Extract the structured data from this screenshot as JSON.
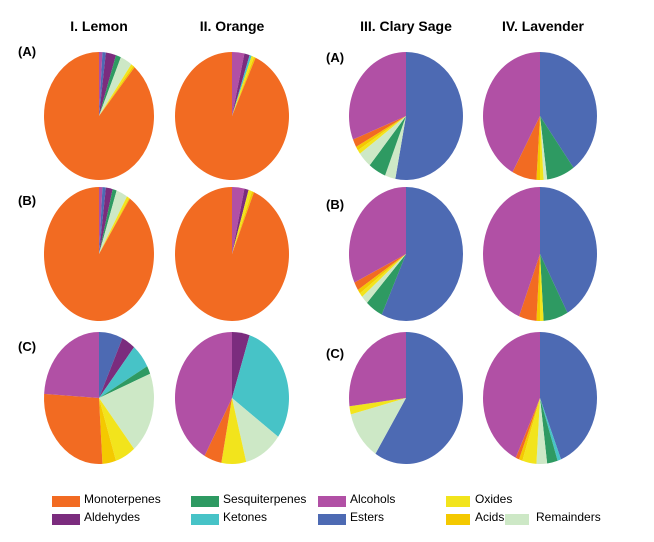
{
  "chart_data": {
    "type": "pie",
    "columns": [
      "I. Lemon",
      "II. Orange",
      "III. Clary Sage",
      "IV. Lavender"
    ],
    "row_labels_left": [
      "(A)",
      "(B)",
      "(C)"
    ],
    "row_labels_right": [
      "(A)",
      "(B)",
      "(C)"
    ],
    "legend_position": "bottom",
    "categories": [
      "Monoterpenes",
      "Aldehydes",
      "Sesquiterpenes",
      "Ketones",
      "Alcohols",
      "Esters",
      "Oxides",
      "Acids",
      "Remainders"
    ],
    "colors": {
      "Monoterpenes": "#f26b22",
      "Aldehydes": "#7b2c7e",
      "Sesquiterpenes": "#2e9a62",
      "Ketones": "#47c3c7",
      "Alcohols": "#b150a5",
      "Esters": "#4d6ab3",
      "Oxides": "#f2e41c",
      "Acids": "#f4c900",
      "Remainders": "#cde8c6"
    },
    "legend": [
      {
        "label": "Monoterpenes",
        "color": "#f26b22"
      },
      {
        "label": "Aldehydes",
        "color": "#7b2c7e"
      },
      {
        "label": "Sesquiterpenes",
        "color": "#2e9a62"
      },
      {
        "label": "Ketones",
        "color": "#47c3c7"
      },
      {
        "label": "Alcohols",
        "color": "#b150a5"
      },
      {
        "label": "Esters",
        "color": "#4d6ab3"
      },
      {
        "label": "Oxides",
        "color": "#f2e41c"
      },
      {
        "label": "Acids",
        "color": "#f4c900"
      },
      {
        "label": "Remainders",
        "color": "#cde8c6"
      }
    ],
    "pies": [
      {
        "column": "I. Lemon",
        "row": "(A)",
        "slices": [
          {
            "category": "Alcohols",
            "value": 1.0
          },
          {
            "category": "Esters",
            "value": 1.0
          },
          {
            "category": "Aldehydes",
            "value": 3.0
          },
          {
            "category": "Sesquiterpenes",
            "value": 1.5
          },
          {
            "category": "Remainders",
            "value": 3.5
          },
          {
            "category": "Oxides",
            "value": 0.7
          },
          {
            "category": "Acids",
            "value": 0.5
          },
          {
            "category": "Monoterpenes",
            "value": 88.8
          }
        ]
      },
      {
        "column": "II. Orange",
        "row": "(A)",
        "slices": [
          {
            "category": "Alcohols",
            "value": 3.5
          },
          {
            "category": "Aldehydes",
            "value": 1.5
          },
          {
            "category": "Ketones",
            "value": 0.6
          },
          {
            "category": "Oxides",
            "value": 0.7
          },
          {
            "category": "Acids",
            "value": 0.5
          },
          {
            "category": "Monoterpenes",
            "value": 93.2
          }
        ]
      },
      {
        "column": "III. Clary Sage",
        "row": "(A)",
        "slices": [
          {
            "category": "Esters",
            "value": 53
          },
          {
            "category": "Remainders",
            "value": 3
          },
          {
            "category": "Sesquiterpenes",
            "value": 5
          },
          {
            "category": "Remainders",
            "value": 4
          },
          {
            "category": "Oxides",
            "value": 1
          },
          {
            "category": "Acids",
            "value": 1
          },
          {
            "category": "Monoterpenes",
            "value": 2
          },
          {
            "category": "Alcohols",
            "value": 31
          }
        ]
      },
      {
        "column": "IV. Lavender",
        "row": "(A)",
        "slices": [
          {
            "category": "Esters",
            "value": 40
          },
          {
            "category": "Sesquiterpenes",
            "value": 8
          },
          {
            "category": "Remainders",
            "value": 1
          },
          {
            "category": "Oxides",
            "value": 1
          },
          {
            "category": "Acids",
            "value": 1
          },
          {
            "category": "Monoterpenes",
            "value": 7
          },
          {
            "category": "Alcohols",
            "value": 42
          }
        ]
      },
      {
        "column": "I. Lemon",
        "row": "(B)",
        "slices": [
          {
            "category": "Alcohols",
            "value": 1.0
          },
          {
            "category": "Esters",
            "value": 1.0
          },
          {
            "category": "Aldehydes",
            "value": 2.0
          },
          {
            "category": "Sesquiterpenes",
            "value": 1.2
          },
          {
            "category": "Remainders",
            "value": 3.3
          },
          {
            "category": "Oxides",
            "value": 0.7
          },
          {
            "category": "Acids",
            "value": 0.3
          },
          {
            "category": "Monoterpenes",
            "value": 90.5
          }
        ]
      },
      {
        "column": "II. Orange",
        "row": "(B)",
        "slices": [
          {
            "category": "Alcohols",
            "value": 3.5
          },
          {
            "category": "Aldehydes",
            "value": 1.2
          },
          {
            "category": "Oxides",
            "value": 1.0
          },
          {
            "category": "Acids",
            "value": 0.6
          },
          {
            "category": "Monoterpenes",
            "value": 93.7
          }
        ]
      },
      {
        "column": "III. Clary Sage",
        "row": "(B)",
        "slices": [
          {
            "category": "Esters",
            "value": 57
          },
          {
            "category": "Sesquiterpenes",
            "value": 5
          },
          {
            "category": "Remainders",
            "value": 2
          },
          {
            "category": "Oxides",
            "value": 1
          },
          {
            "category": "Acids",
            "value": 1
          },
          {
            "category": "Monoterpenes",
            "value": 2
          },
          {
            "category": "Alcohols",
            "value": 32
          }
        ]
      },
      {
        "column": "IV. Lavender",
        "row": "(B)",
        "slices": [
          {
            "category": "Esters",
            "value": 42
          },
          {
            "category": "Sesquiterpenes",
            "value": 7
          },
          {
            "category": "Oxides",
            "value": 1
          },
          {
            "category": "Acids",
            "value": 1
          },
          {
            "category": "Monoterpenes",
            "value": 5
          },
          {
            "category": "Alcohols",
            "value": 44
          }
        ]
      },
      {
        "column": "I. Lemon",
        "row": "(C)",
        "slices": [
          {
            "category": "Esters",
            "value": 7
          },
          {
            "category": "Aldehydes",
            "value": 4
          },
          {
            "category": "Ketones",
            "value": 6
          },
          {
            "category": "Sesquiterpenes",
            "value": 2
          },
          {
            "category": "Remainders",
            "value": 20
          },
          {
            "category": "Oxides",
            "value": 6
          },
          {
            "category": "Acids",
            "value": 4
          },
          {
            "category": "Monoterpenes",
            "value": 27
          },
          {
            "category": "Alcohols",
            "value": 24
          }
        ]
      },
      {
        "column": "II. Orange",
        "row": "(C)",
        "slices": [
          {
            "category": "Aldehydes",
            "value": 5
          },
          {
            "category": "Ketones",
            "value": 30
          },
          {
            "category": "Remainders",
            "value": 11
          },
          {
            "category": "Oxides",
            "value": 7
          },
          {
            "category": "Monoterpenes",
            "value": 5
          },
          {
            "category": "Alcohols",
            "value": 42
          }
        ]
      },
      {
        "column": "III. Clary Sage",
        "row": "(C)",
        "slices": [
          {
            "category": "Esters",
            "value": 59
          },
          {
            "category": "Remainders",
            "value": 12
          },
          {
            "category": "Oxides",
            "value": 2
          },
          {
            "category": "Alcohols",
            "value": 27
          }
        ]
      },
      {
        "column": "IV. Lavender",
        "row": "(C)",
        "slices": [
          {
            "category": "Esters",
            "value": 44
          },
          {
            "category": "Ketones",
            "value": 1
          },
          {
            "category": "Sesquiterpenes",
            "value": 3
          },
          {
            "category": "Remainders",
            "value": 3
          },
          {
            "category": "Oxides",
            "value": 4
          },
          {
            "category": "Acids",
            "value": 1
          },
          {
            "category": "Monoterpenes",
            "value": 1
          },
          {
            "category": "Alcohols",
            "value": 43
          }
        ]
      }
    ]
  }
}
